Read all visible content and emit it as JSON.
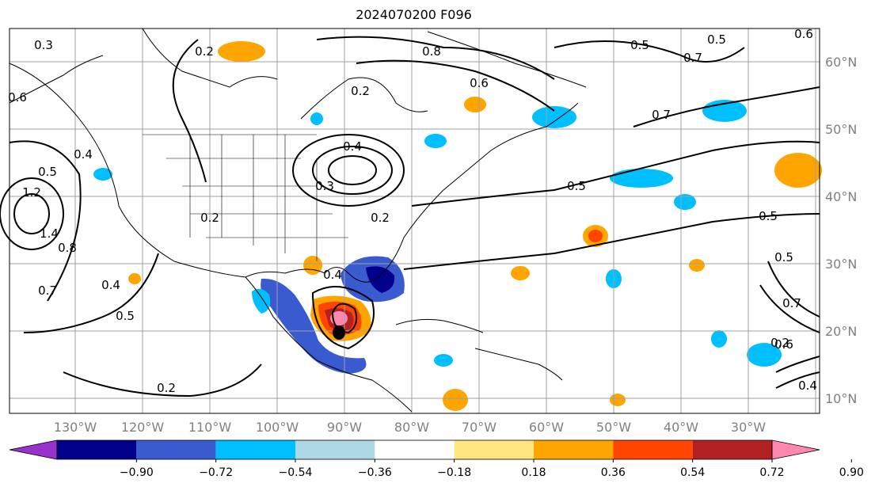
{
  "title": "2024070200 F096",
  "map": {
    "lon_labels": [
      "130°W",
      "120°W",
      "110°W",
      "100°W",
      "90°W",
      "80°W",
      "70°W",
      "60°W",
      "50°W",
      "40°W",
      "30°W"
    ],
    "lat_labels": [
      "60°N",
      "50°N",
      "40°N",
      "30°N",
      "20°N",
      "10°N"
    ],
    "contour_labels": [
      "0.3",
      "0.2",
      "0.6",
      "0.4",
      "0.5",
      "1.2",
      "1.4",
      "0.8",
      "0.7",
      "0.2",
      "0.4",
      "0.5",
      "0.2",
      "0.8",
      "0.4",
      "0.2",
      "0.3",
      "0.5",
      "0.2",
      "0.4",
      "0.6",
      "0.7",
      "0.5",
      "0.5",
      "0.6",
      "0.7",
      "0.5",
      "0.5",
      "0.7",
      "0.6",
      "0.2",
      "0.4"
    ],
    "colors": {
      "contour": "#000000",
      "grid": "#a0a0a0",
      "border": "#000000"
    }
  },
  "colorbar": {
    "tick_labels": [
      "−0.90",
      "−0.72",
      "−0.54",
      "−0.36",
      "−0.18",
      "0.18",
      "0.36",
      "0.54",
      "0.72",
      "0.90"
    ],
    "colors": [
      "#9932cc",
      "#00008b",
      "#3a5bcf",
      "#00bfff",
      "#add8e6",
      "#ffffff",
      "#ffe680",
      "#ffa500",
      "#ff4500",
      "#b22222",
      "#ff88b0"
    ]
  }
}
